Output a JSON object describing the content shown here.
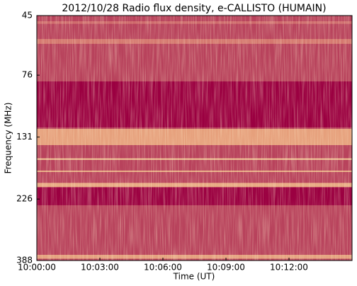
{
  "chart_data": {
    "type": "spectrogram",
    "title": "2012/10/28  Radio flux density, e-CALLISTO (HUMAIN)",
    "x_label": "Time (UT)",
    "y_label": "Frequency (MHz)",
    "xlim": [
      "10:00:00",
      "10:15:00"
    ],
    "xticks": [
      "10:00:00",
      "10:03:00",
      "10:06:00",
      "10:09:00",
      "10:12:00"
    ],
    "ylim": [
      45,
      388
    ],
    "yticks": [
      45,
      76,
      131,
      226,
      388
    ],
    "ylog": true,
    "y_inverted": true,
    "background_color": "#b8425c",
    "bands": [
      {
        "range": [
          47.3,
          48.4
        ],
        "color": "#cf6a6c"
      },
      {
        "range": [
          55.3,
          57.7
        ],
        "color": "#d4766e"
      },
      {
        "range": [
          80.3,
          120.3
        ],
        "color": "#9b0041"
      },
      {
        "range": [
          121.9,
          140.6
        ],
        "color": "#e6a07c"
      },
      {
        "range": [
          158,
          160
        ],
        "color": "#f2c896"
      },
      {
        "range": [
          176,
          178
        ],
        "color": "#eeb88a"
      },
      {
        "range": [
          196,
          203
        ],
        "color": "#e8a882"
      },
      {
        "range": [
          204.3,
          238.6
        ],
        "color": "#9b0041"
      },
      {
        "range": [
          369,
          382
        ],
        "color": "#e4a07e"
      }
    ]
  }
}
